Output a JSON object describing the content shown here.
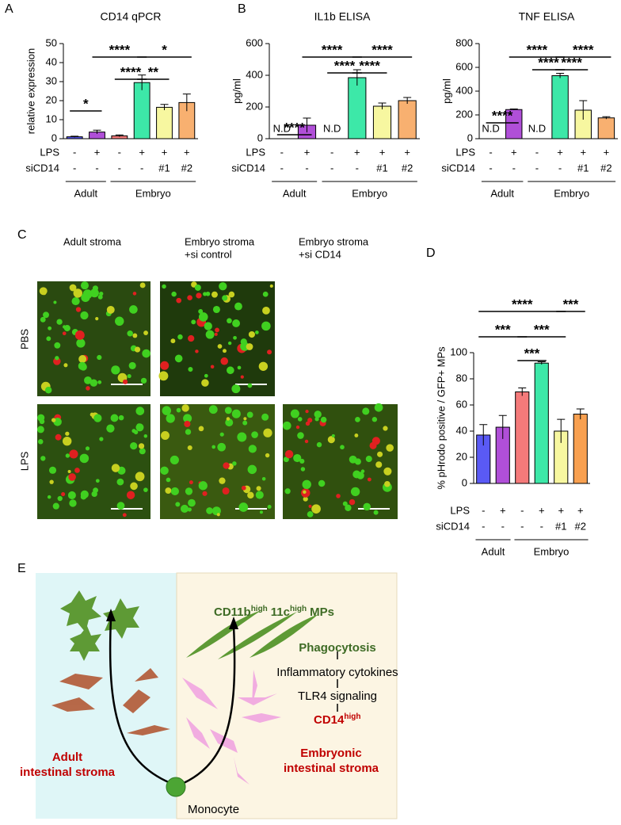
{
  "panel_labels": [
    "A",
    "B",
    "C",
    "D",
    "E"
  ],
  "chart_data": [
    {
      "type": "bar",
      "title": "CD14 qPCR",
      "ylabel": "relative expression",
      "ylim": [
        0,
        50
      ],
      "yticks": [
        0,
        10,
        20,
        30,
        40,
        50
      ],
      "values": [
        1,
        3.5,
        1.5,
        29.5,
        16.5,
        19
      ],
      "errors": [
        0.3,
        1,
        0.5,
        4,
        1.5,
        4.5
      ],
      "colors": [
        "#5a5af5",
        "#b04fd8",
        "#f47a7a",
        "#3de8a8",
        "#f7f7a0",
        "#f8b070"
      ],
      "rows": [
        {
          "name": "LPS",
          "labels": [
            "-",
            "+",
            "-",
            "+",
            "+",
            "+"
          ]
        },
        {
          "name": "siCD14",
          "labels": [
            "-",
            "-",
            "-",
            "-",
            "#1",
            "#2"
          ]
        }
      ],
      "groups": [
        "Adult",
        "Embryo"
      ],
      "annotations": [
        "*",
        "****",
        "*",
        "****",
        "**"
      ]
    },
    {
      "type": "bar",
      "title": "IL1b ELISA",
      "ylabel": "pg/ml",
      "ylim": [
        0,
        600
      ],
      "yticks": [
        0,
        200,
        400,
        600
      ],
      "values": [
        null,
        85,
        null,
        385,
        205,
        240
      ],
      "value_labels": [
        "N.D",
        null,
        "N.D",
        null,
        null,
        null
      ],
      "errors": [
        null,
        45,
        null,
        50,
        20,
        20
      ],
      "colors": [
        "#5a5af5",
        "#b04fd8",
        "#f47a7a",
        "#3de8a8",
        "#f7f7a0",
        "#f8b070"
      ],
      "rows": [
        {
          "name": "LPS",
          "labels": [
            "-",
            "+",
            "-",
            "+",
            "+",
            "+"
          ]
        },
        {
          "name": "siCD14",
          "labels": [
            "-",
            "-",
            "-",
            "-",
            "#1",
            "#2"
          ]
        }
      ],
      "groups": [
        "Adult",
        "Embryo"
      ],
      "annotations": [
        "****",
        "****",
        "****",
        "****",
        "****"
      ]
    },
    {
      "type": "bar",
      "title": "TNF ELISA",
      "ylabel": "pg/ml",
      "ylim": [
        0,
        800
      ],
      "yticks": [
        0,
        200,
        400,
        600,
        800
      ],
      "values": [
        null,
        245,
        null,
        530,
        240,
        175
      ],
      "value_labels": [
        "N.D",
        null,
        "N.D",
        null,
        null,
        null
      ],
      "errors": [
        null,
        5,
        null,
        20,
        80,
        10
      ],
      "colors": [
        "#5a5af5",
        "#b04fd8",
        "#f47a7a",
        "#3de8a8",
        "#f7f7a0",
        "#f8b070"
      ],
      "rows": [
        {
          "name": "LPS",
          "labels": [
            "-",
            "+",
            "-",
            "+",
            "+",
            "+"
          ]
        },
        {
          "name": "siCD14",
          "labels": [
            "-",
            "-",
            "-",
            "-",
            "#1",
            "#2"
          ]
        }
      ],
      "groups": [
        "Adult",
        "Embryo"
      ],
      "annotations": [
        "****",
        "****",
        "****",
        "****",
        "****"
      ]
    },
    {
      "type": "bar",
      "title": null,
      "ylabel": "% pHrodo positive / GFP+ MPs",
      "ylim": [
        0,
        100
      ],
      "yticks": [
        0,
        20,
        40,
        60,
        80,
        100
      ],
      "values": [
        37,
        43,
        70,
        92,
        40,
        53
      ],
      "errors": [
        8,
        9,
        3,
        1,
        9,
        4
      ],
      "colors": [
        "#5a5af5",
        "#b04fd8",
        "#f47a7a",
        "#3de8a8",
        "#f7f7a0",
        "#f8a050"
      ],
      "rows": [
        {
          "name": "LPS",
          "labels": [
            "-",
            "+",
            "-",
            "+",
            "+",
            "+"
          ]
        },
        {
          "name": "siCD14",
          "labels": [
            "-",
            "-",
            "-",
            "-",
            "#1",
            "#2"
          ]
        }
      ],
      "groups": [
        "Adult",
        "Embryo"
      ],
      "annotations": [
        "****",
        "***",
        "***",
        "***",
        "***"
      ]
    }
  ],
  "microscopy": {
    "columns": [
      [
        "Adult stroma"
      ],
      [
        "Embryo stroma",
        "+si control"
      ],
      [
        "Embryo stroma",
        "+si CD14"
      ]
    ],
    "rows": [
      "PBS",
      "LPS"
    ]
  },
  "diagram": {
    "mps": [
      "CD11b",
      "high",
      "11c",
      "high",
      "MPs"
    ],
    "steps": [
      "Phagocytosis",
      "Inflammatory cytokines",
      "TLR4 signaling"
    ],
    "cd14": [
      "CD14",
      "high"
    ],
    "adult": [
      "Adult",
      "intestinal stroma"
    ],
    "embryonic": [
      "Embryonic",
      "intestinal stroma"
    ],
    "monocyte": "Monocyte"
  }
}
